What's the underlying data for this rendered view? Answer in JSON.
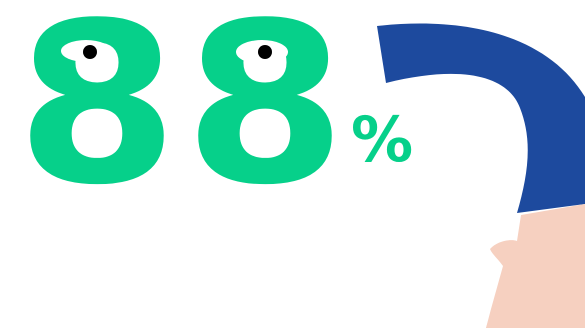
{
  "headline": {
    "digit_one": "8",
    "digit_two": "8",
    "percent_sign": "%"
  },
  "colors": {
    "number": "#06d08a",
    "sleeve": "#1d4a9e",
    "skin": "#f6d0c0",
    "eye_white": "#ffffff",
    "pupil": "#000000"
  },
  "icons": {
    "eye_left": "eye-icon",
    "eye_right": "eye-icon",
    "hand": "pointing-hand-icon",
    "sleeve": "arm-sleeve-icon"
  }
}
